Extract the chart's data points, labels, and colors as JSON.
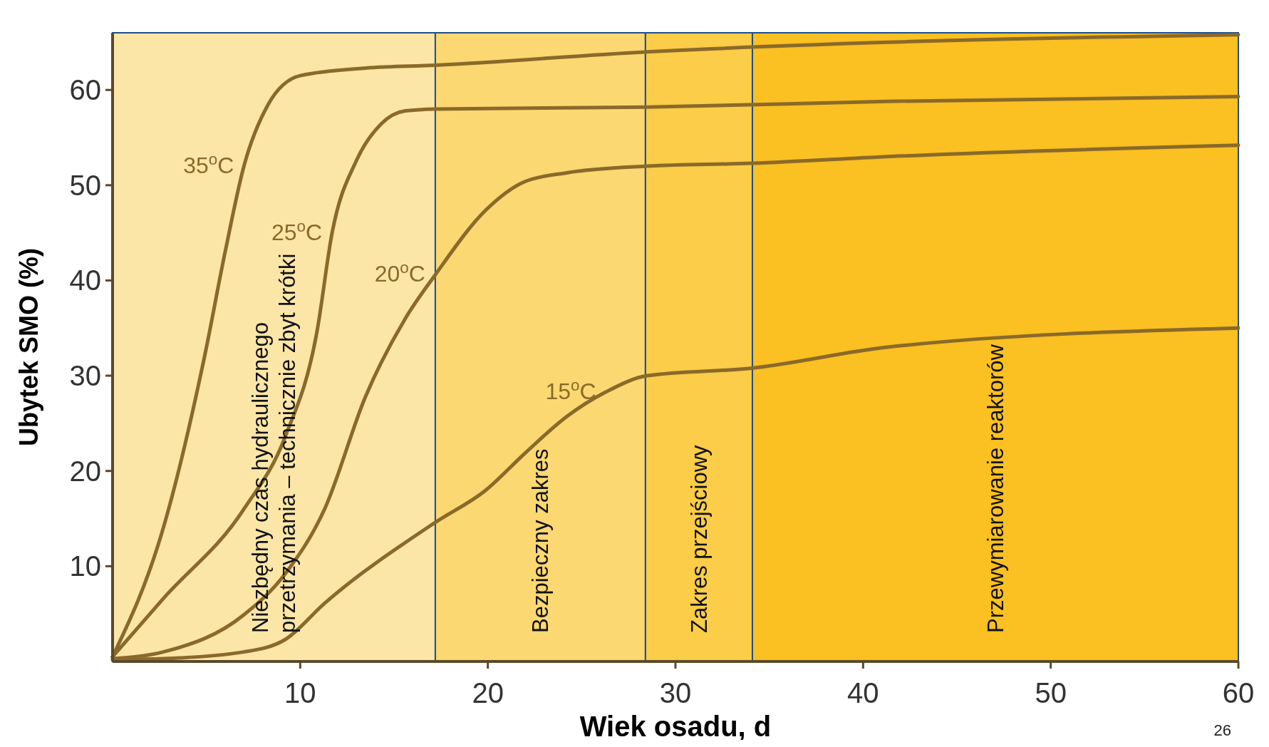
{
  "chart_data": {
    "type": "line",
    "xlabel": "Wiek osadu, d",
    "ylabel": "Ubytek SMO (%)",
    "xlim": [
      0,
      60
    ],
    "ylim": [
      0,
      66
    ],
    "xticks": [
      10,
      20,
      30,
      40,
      50,
      60
    ],
    "yticks": [
      10,
      20,
      30,
      40,
      50,
      60
    ],
    "grid": false,
    "line_style": "solid",
    "series": [
      {
        "name": "35$^{o}$C",
        "color": "#8a6a2a",
        "x": [
          0,
          2.7,
          4.9,
          6,
          7,
          8.3,
          10,
          13.5,
          17.2,
          28.5,
          41.3,
          60
        ],
        "values": [
          0.5,
          14,
          32,
          43,
          52,
          58.5,
          61.5,
          62.3,
          62.6,
          64,
          65,
          65.8
        ]
      },
      {
        "name": "25$^{o}$C",
        "color": "#8a6a2a",
        "x": [
          0,
          2.7,
          7,
          9.2,
          10.9,
          11.7,
          13,
          14.3,
          15.6,
          17.2,
          28.5,
          41.3,
          60
        ],
        "values": [
          0.5,
          6.6,
          16,
          23.6,
          34.7,
          45,
          52.6,
          56.4,
          57.8,
          58,
          58.2,
          58.8,
          59.3
        ]
      },
      {
        "name": "20$^{o}$C",
        "color": "#8a6a2a",
        "x": [
          0,
          2.7,
          7,
          9.2,
          11.3,
          13.5,
          15.6,
          17.2,
          19.9,
          22,
          24.2,
          28.5,
          34.1,
          41.3,
          60
        ],
        "values": [
          0.3,
          1,
          4.9,
          9.2,
          16,
          27.9,
          36,
          40.6,
          47.4,
          50.4,
          51.3,
          52,
          52.3,
          53,
          54.2
        ]
      },
      {
        "name": "15$^{o}$C",
        "color": "#8a6a2a",
        "x": [
          0,
          2.7,
          7,
          9.2,
          11.3,
          17.2,
          19.9,
          22,
          24.2,
          26.3,
          28.5,
          34.1,
          41.3,
          60
        ],
        "values": [
          0.2,
          0.3,
          1,
          2.3,
          6.1,
          14.6,
          18,
          21.9,
          25.7,
          28.3,
          30,
          30.8,
          33,
          35
        ]
      }
    ],
    "bands": [
      {
        "axis": "x",
        "from": 0,
        "to": 17.2,
        "label": "Niezbędny czas hydraulicznego przetrzymania – technicznie zbyt krótki",
        "color": "#fbe6a8"
      },
      {
        "axis": "x",
        "from": 17.2,
        "to": 28.4,
        "label": "Bezpieczny zakres",
        "color": "#fbd871"
      },
      {
        "axis": "x",
        "from": 28.4,
        "to": 34.1,
        "label": "Zakres przejściowy",
        "color": "#fbcd48"
      },
      {
        "axis": "x",
        "from": 34.1,
        "to": 60,
        "label": "Przewymiarowanie reaktorów",
        "color": "#fbc021"
      }
    ],
    "annotations": [
      "26"
    ]
  }
}
